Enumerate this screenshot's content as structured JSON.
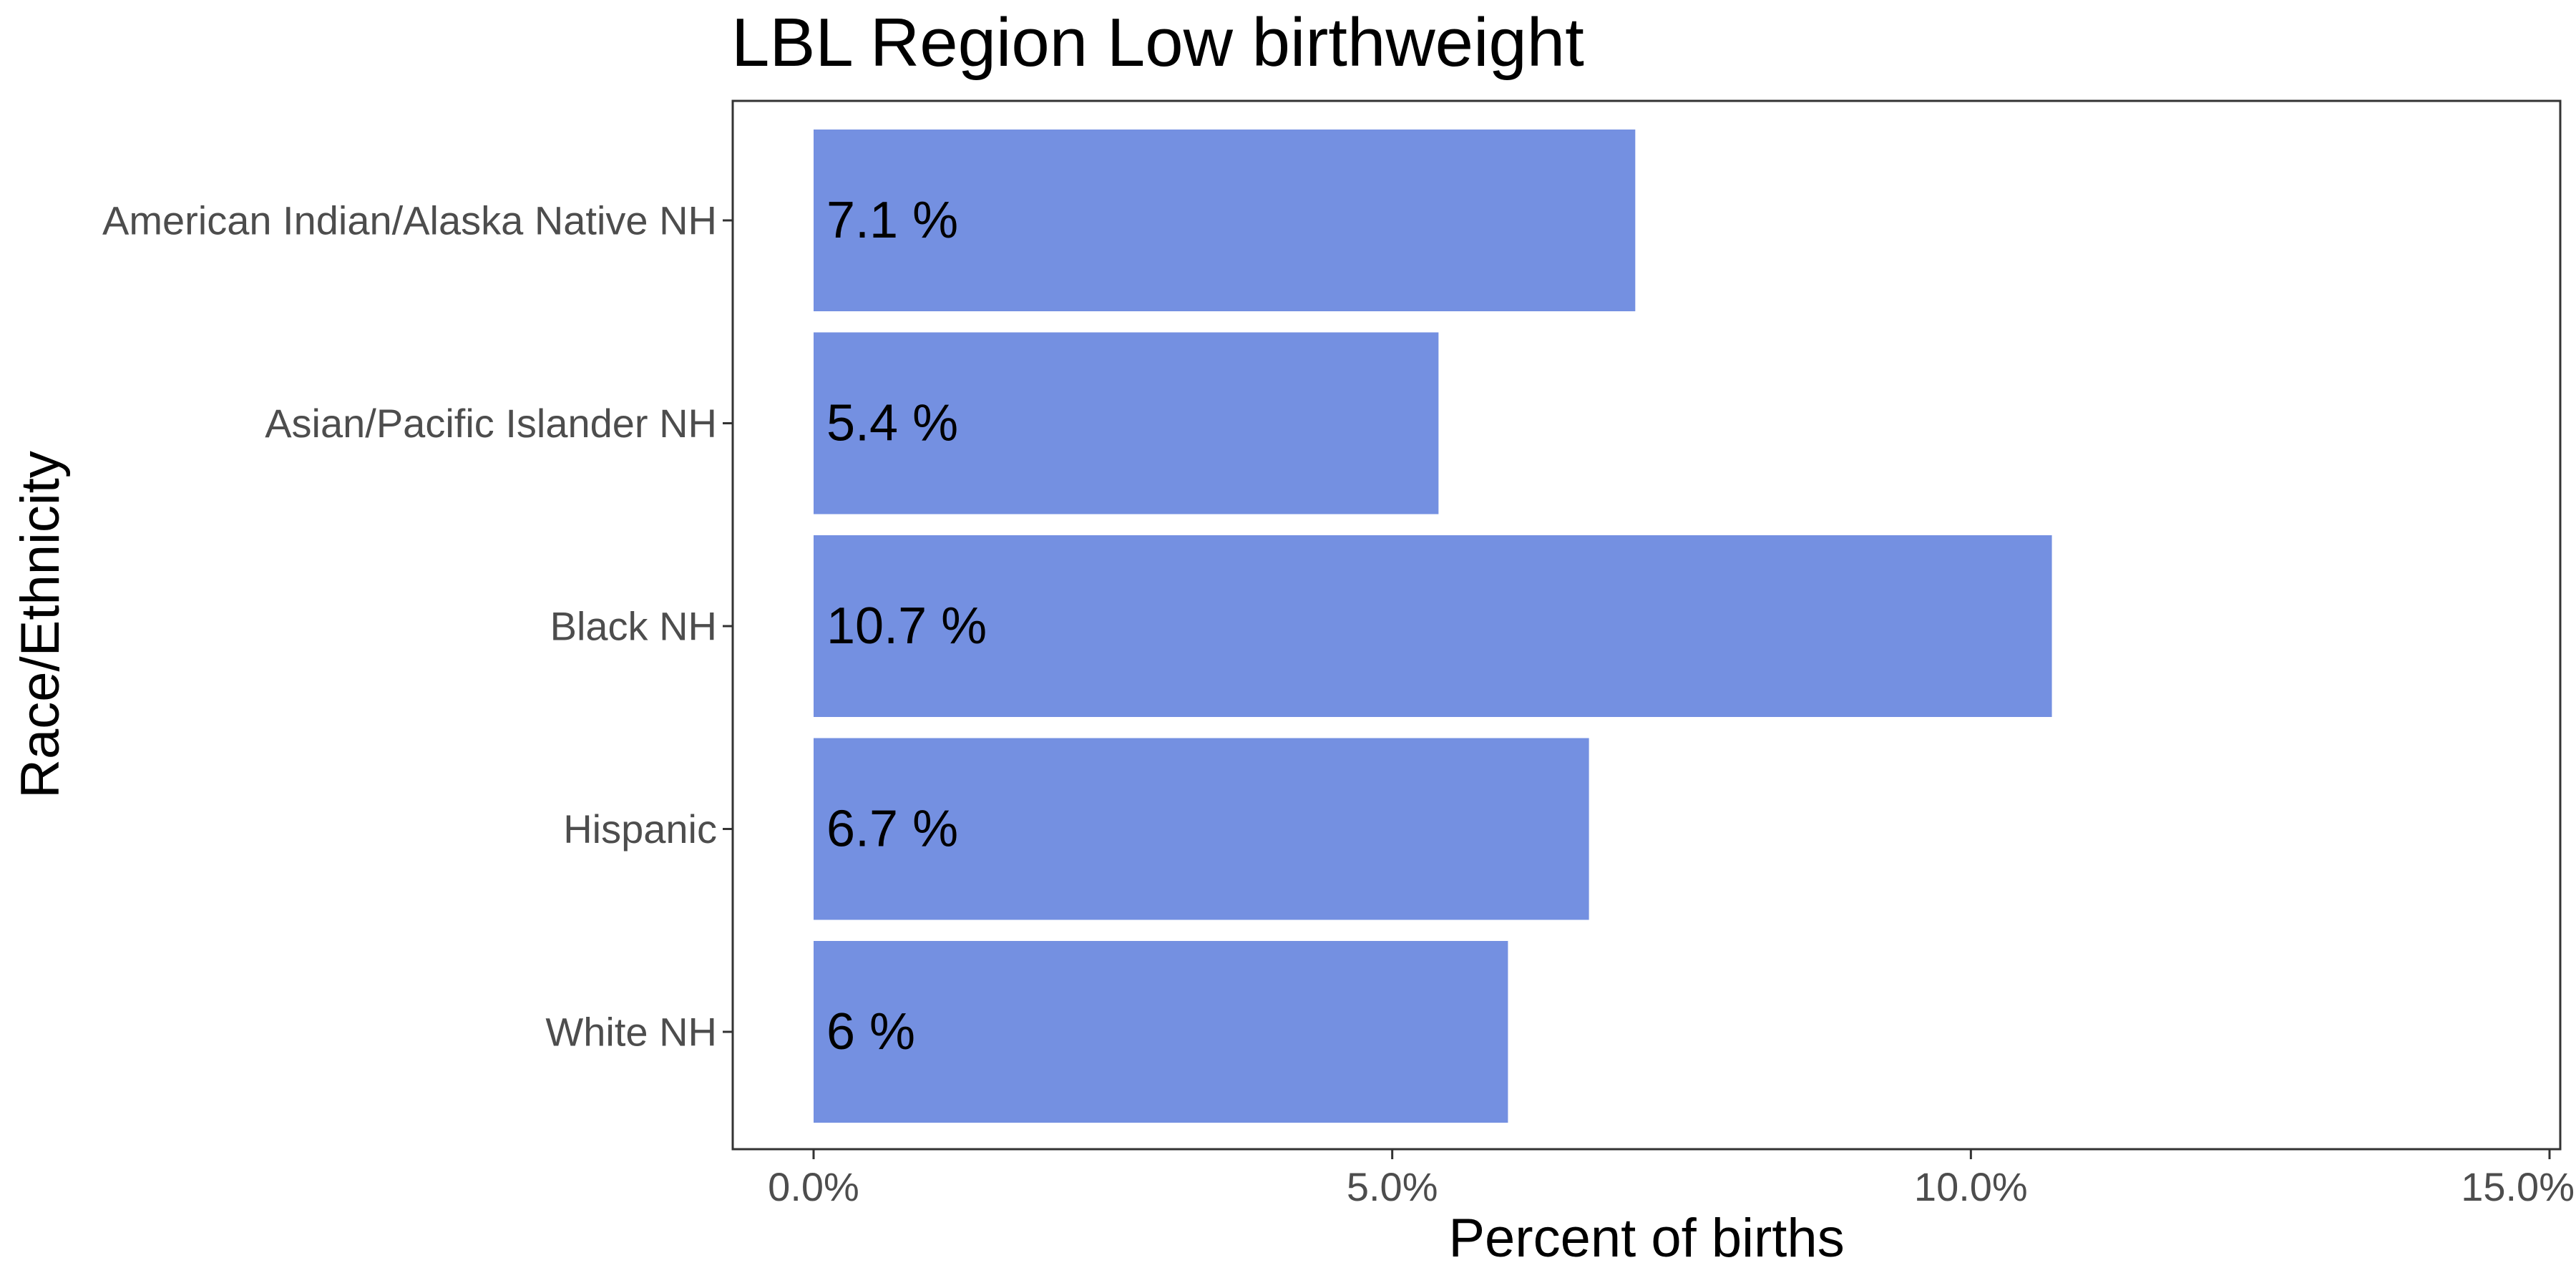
{
  "chart_data": {
    "type": "bar",
    "orientation": "horizontal",
    "title": "LBL Region Low birthweight",
    "xlabel": "Percent of births",
    "ylabel": "Race/Ethnicity",
    "categories": [
      "American Indian/Alaska Native NH",
      "Asian/Pacific Islander NH",
      "Black NH",
      "Hispanic",
      "White NH"
    ],
    "values": [
      7.1,
      5.4,
      10.7,
      6.7,
      6.0
    ],
    "data_labels": [
      "7.1 %",
      "5.4 %",
      "10.7 %",
      "6.7 %",
      "6 %"
    ],
    "xlim": [
      0,
      15
    ],
    "x_ticks": [
      0,
      5,
      10,
      15
    ],
    "x_tick_labels": [
      "0.0%",
      "5.0%",
      "10.0%",
      "15.0%"
    ],
    "grid": false,
    "legend": "none",
    "bar_color": "#7490e1"
  }
}
